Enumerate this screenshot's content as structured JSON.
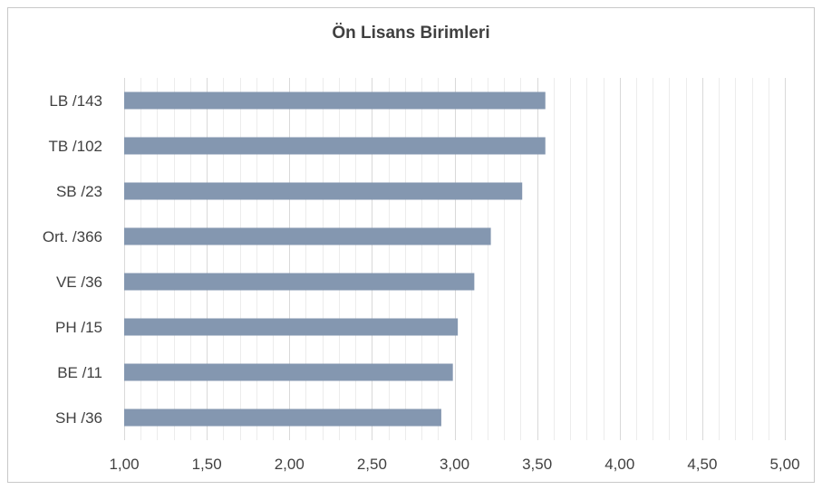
{
  "chart_data": {
    "type": "bar",
    "orientation": "horizontal",
    "title": "Ön Lisans Birimleri",
    "xlabel": "",
    "ylabel": "",
    "categories": [
      "LB /143",
      "TB /102",
      "SB /23",
      "Ort. /366",
      "VE /36",
      "PH /15",
      "BE /11",
      "SH /36"
    ],
    "values": [
      3.55,
      3.55,
      3.41,
      3.22,
      3.12,
      3.02,
      2.99,
      2.92
    ],
    "xlim": [
      1.0,
      5.0
    ],
    "major_ticks": [
      "1,00",
      "1,50",
      "2,00",
      "2,50",
      "3,00",
      "3,50",
      "4,00",
      "4,50",
      "5,00"
    ],
    "minor_step": 0.1,
    "grid": true,
    "legend": "none",
    "bar_color": "#8497b0",
    "grid_major_color": "#d9d9d9",
    "grid_minor_color": "#ececec",
    "text_color": "#404040"
  }
}
